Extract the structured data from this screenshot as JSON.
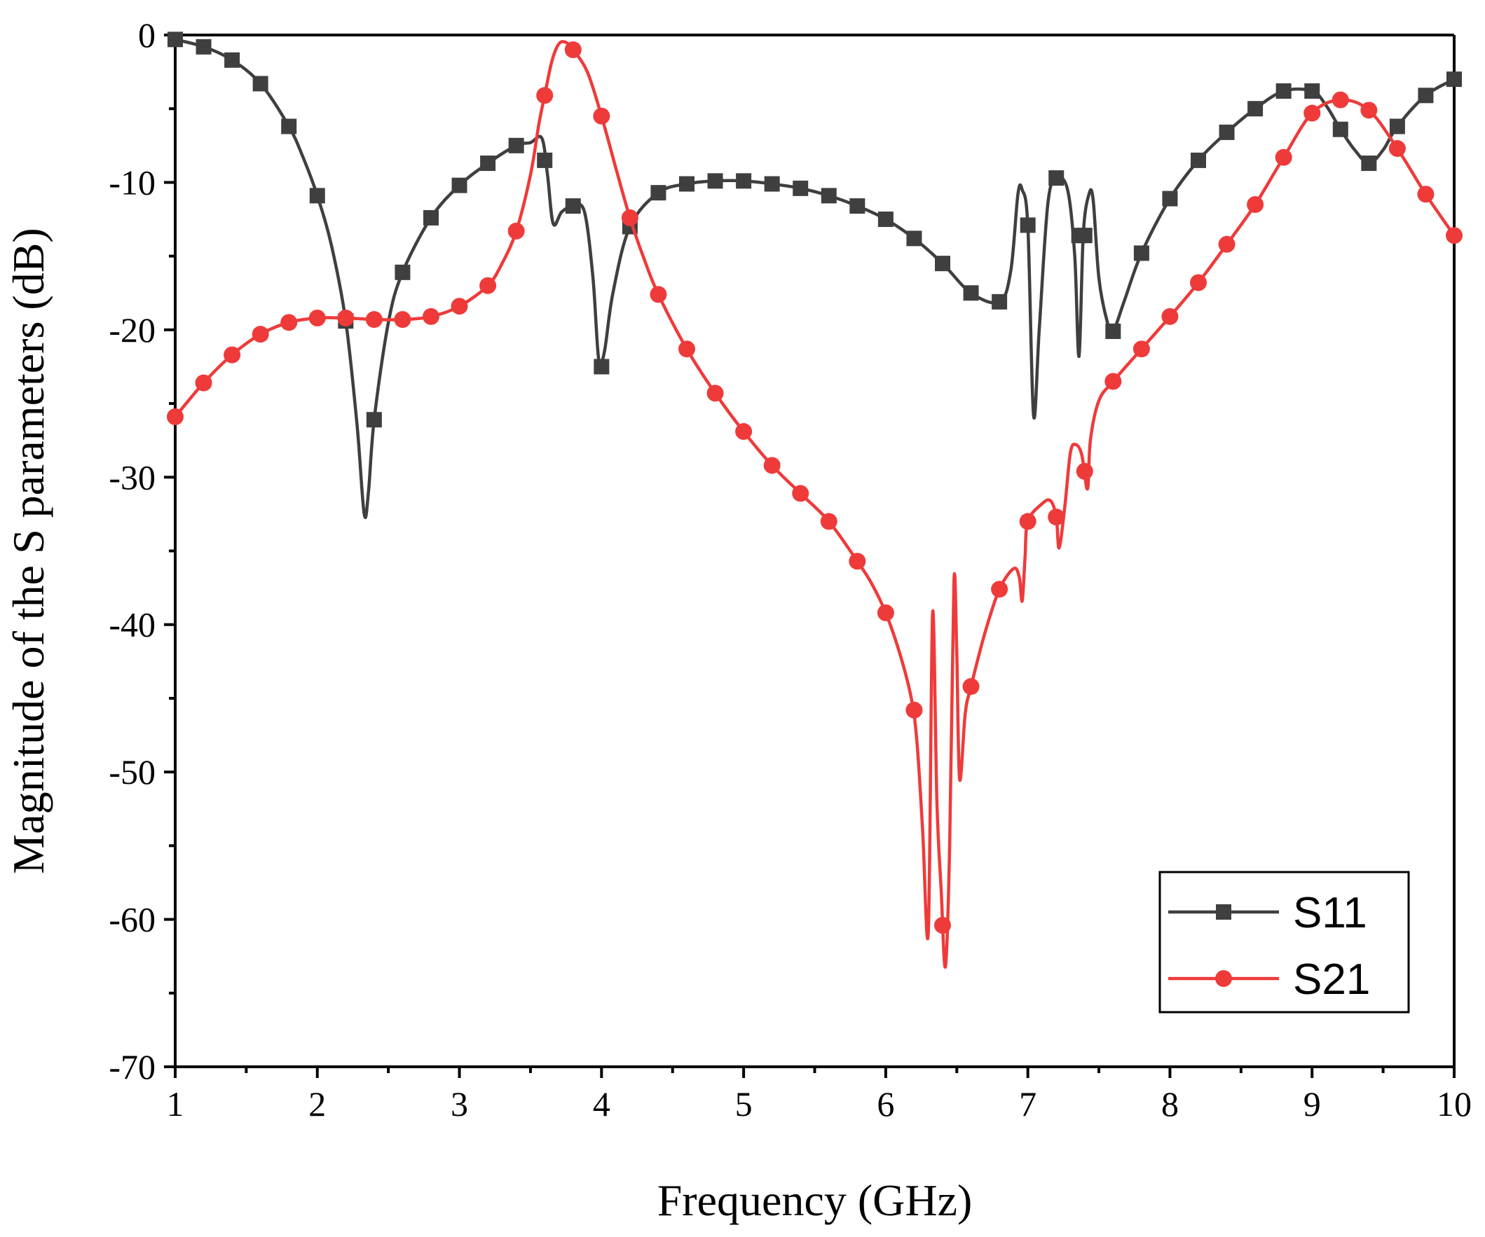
{
  "chart_data": {
    "type": "line",
    "title": "",
    "xlabel": "Frequency (GHz)",
    "ylabel": "Magnitude of the S parameters (dB)",
    "xlim": [
      1,
      10
    ],
    "ylim": [
      -70,
      0
    ],
    "xticks": [
      1,
      2,
      3,
      4,
      5,
      6,
      7,
      8,
      9,
      10
    ],
    "yticks": [
      0,
      -10,
      -20,
      -30,
      -40,
      -50,
      -60,
      -70
    ],
    "xtick_labels": [
      "1",
      "2",
      "3",
      "4",
      "5",
      "6",
      "7",
      "8",
      "9",
      "10"
    ],
    "ytick_labels": [
      "0",
      "-10",
      "-20",
      "-30",
      "-40",
      "-50",
      "-60",
      "-70"
    ],
    "grid": false,
    "legend_position": "bottom-right",
    "series": [
      {
        "name": "S11",
        "color": "#3f3f3f",
        "marker": "square",
        "line": [
          [
            1.0,
            -0.3
          ],
          [
            1.2,
            -0.8
          ],
          [
            1.4,
            -1.7
          ],
          [
            1.6,
            -3.3
          ],
          [
            1.8,
            -6.2
          ],
          [
            1.9,
            -8.3
          ],
          [
            2.0,
            -10.9
          ],
          [
            2.1,
            -14.3
          ],
          [
            2.2,
            -19.4
          ],
          [
            2.28,
            -26.5
          ],
          [
            2.33,
            -32.5
          ],
          [
            2.36,
            -31.0
          ],
          [
            2.4,
            -26.1
          ],
          [
            2.5,
            -19.5
          ],
          [
            2.6,
            -16.1
          ],
          [
            2.8,
            -12.4
          ],
          [
            3.0,
            -10.2
          ],
          [
            3.2,
            -8.7
          ],
          [
            3.4,
            -7.5
          ],
          [
            3.5,
            -7.3
          ],
          [
            3.58,
            -7.0
          ],
          [
            3.62,
            -9.5
          ],
          [
            3.66,
            -12.8
          ],
          [
            3.72,
            -12.0
          ],
          [
            3.8,
            -11.6
          ],
          [
            3.88,
            -12.0
          ],
          [
            3.94,
            -16.5
          ],
          [
            3.98,
            -22.0
          ],
          [
            4.02,
            -21.5
          ],
          [
            4.08,
            -17.5
          ],
          [
            4.2,
            -13.0
          ],
          [
            4.4,
            -10.7
          ],
          [
            4.6,
            -10.1
          ],
          [
            4.8,
            -9.9
          ],
          [
            5.0,
            -9.9
          ],
          [
            5.2,
            -10.1
          ],
          [
            5.4,
            -10.4
          ],
          [
            5.6,
            -10.9
          ],
          [
            5.8,
            -11.6
          ],
          [
            6.0,
            -12.5
          ],
          [
            6.2,
            -13.8
          ],
          [
            6.4,
            -15.5
          ],
          [
            6.6,
            -17.5
          ],
          [
            6.8,
            -18.1
          ],
          [
            6.88,
            -16.0
          ],
          [
            6.93,
            -10.8
          ],
          [
            6.96,
            -10.5
          ],
          [
            7.0,
            -13.0
          ],
          [
            7.04,
            -25.8
          ],
          [
            7.08,
            -20.0
          ],
          [
            7.14,
            -11.5
          ],
          [
            7.2,
            -9.7
          ],
          [
            7.28,
            -10.5
          ],
          [
            7.33,
            -15.0
          ],
          [
            7.36,
            -21.8
          ],
          [
            7.39,
            -13.5
          ],
          [
            7.43,
            -10.8
          ],
          [
            7.46,
            -11.2
          ],
          [
            7.5,
            -16.5
          ],
          [
            7.56,
            -19.5
          ],
          [
            7.6,
            -20.1
          ],
          [
            7.68,
            -18.0
          ],
          [
            7.8,
            -14.8
          ],
          [
            8.0,
            -11.1
          ],
          [
            8.2,
            -8.5
          ],
          [
            8.4,
            -6.6
          ],
          [
            8.6,
            -5.0
          ],
          [
            8.8,
            -3.8
          ],
          [
            9.0,
            -3.8
          ],
          [
            9.1,
            -4.8
          ],
          [
            9.2,
            -6.4
          ],
          [
            9.3,
            -7.8
          ],
          [
            9.4,
            -8.7
          ],
          [
            9.5,
            -7.8
          ],
          [
            9.6,
            -6.2
          ],
          [
            9.8,
            -4.1
          ],
          [
            10.0,
            -3.0
          ]
        ],
        "markers": [
          [
            1.0,
            -0.3
          ],
          [
            1.2,
            -0.8
          ],
          [
            1.4,
            -1.7
          ],
          [
            1.6,
            -3.3
          ],
          [
            1.8,
            -6.2
          ],
          [
            2.0,
            -10.9
          ],
          [
            2.2,
            -19.4
          ],
          [
            2.4,
            -26.1
          ],
          [
            2.6,
            -16.1
          ],
          [
            2.8,
            -12.4
          ],
          [
            3.0,
            -10.2
          ],
          [
            3.2,
            -8.7
          ],
          [
            3.4,
            -7.5
          ],
          [
            3.6,
            -8.5
          ],
          [
            3.8,
            -11.6
          ],
          [
            4.0,
            -22.5
          ],
          [
            4.2,
            -13.0
          ],
          [
            4.4,
            -10.7
          ],
          [
            4.6,
            -10.1
          ],
          [
            4.8,
            -9.9
          ],
          [
            5.0,
            -9.9
          ],
          [
            5.2,
            -10.1
          ],
          [
            5.4,
            -10.4
          ],
          [
            5.6,
            -10.9
          ],
          [
            5.8,
            -11.6
          ],
          [
            6.0,
            -12.5
          ],
          [
            6.2,
            -13.8
          ],
          [
            6.4,
            -15.5
          ],
          [
            6.6,
            -17.5
          ],
          [
            6.8,
            -18.1
          ],
          [
            7.0,
            -12.9
          ],
          [
            7.2,
            -9.7
          ],
          [
            7.36,
            -13.6
          ],
          [
            7.4,
            -13.6
          ],
          [
            7.6,
            -20.1
          ],
          [
            7.8,
            -14.8
          ],
          [
            8.0,
            -11.1
          ],
          [
            8.2,
            -8.5
          ],
          [
            8.4,
            -6.6
          ],
          [
            8.6,
            -5.0
          ],
          [
            8.8,
            -3.8
          ],
          [
            9.0,
            -3.8
          ],
          [
            9.2,
            -6.4
          ],
          [
            9.4,
            -8.7
          ],
          [
            9.6,
            -6.2
          ],
          [
            9.8,
            -4.1
          ],
          [
            10.0,
            -3.0
          ]
        ]
      },
      {
        "name": "S21",
        "color": "#ef3a3a",
        "marker": "circle",
        "line": [
          [
            1.0,
            -25.9
          ],
          [
            1.2,
            -23.6
          ],
          [
            1.4,
            -21.7
          ],
          [
            1.6,
            -20.3
          ],
          [
            1.8,
            -19.5
          ],
          [
            2.0,
            -19.2
          ],
          [
            2.2,
            -19.2
          ],
          [
            2.4,
            -19.3
          ],
          [
            2.6,
            -19.3
          ],
          [
            2.8,
            -19.1
          ],
          [
            3.0,
            -18.4
          ],
          [
            3.2,
            -17.0
          ],
          [
            3.3,
            -15.5
          ],
          [
            3.4,
            -13.3
          ],
          [
            3.5,
            -9.5
          ],
          [
            3.56,
            -6.0
          ],
          [
            3.6,
            -4.1
          ],
          [
            3.65,
            -1.8
          ],
          [
            3.7,
            -0.6
          ],
          [
            3.75,
            -0.5
          ],
          [
            3.8,
            -1.0
          ],
          [
            3.9,
            -2.5
          ],
          [
            4.0,
            -5.5
          ],
          [
            4.1,
            -9.0
          ],
          [
            4.2,
            -12.4
          ],
          [
            4.3,
            -15.2
          ],
          [
            4.4,
            -17.6
          ],
          [
            4.6,
            -21.3
          ],
          [
            4.8,
            -24.3
          ],
          [
            5.0,
            -26.9
          ],
          [
            5.2,
            -29.2
          ],
          [
            5.4,
            -31.1
          ],
          [
            5.6,
            -33.0
          ],
          [
            5.8,
            -35.7
          ],
          [
            5.9,
            -37.2
          ],
          [
            6.0,
            -39.2
          ],
          [
            6.1,
            -42.0
          ],
          [
            6.18,
            -45.0
          ],
          [
            6.22,
            -48.0
          ],
          [
            6.26,
            -54.0
          ],
          [
            6.3,
            -60.8
          ],
          [
            6.33,
            -39.2
          ],
          [
            6.36,
            -52.0
          ],
          [
            6.39,
            -58.0
          ],
          [
            6.42,
            -63.2
          ],
          [
            6.45,
            -55.0
          ],
          [
            6.48,
            -37.1
          ],
          [
            6.5,
            -42.0
          ],
          [
            6.52,
            -50.5
          ],
          [
            6.56,
            -46.0
          ],
          [
            6.6,
            -44.2
          ],
          [
            6.7,
            -40.5
          ],
          [
            6.8,
            -37.6
          ],
          [
            6.9,
            -36.2
          ],
          [
            6.94,
            -36.8
          ],
          [
            6.96,
            -38.4
          ],
          [
            6.98,
            -35.5
          ],
          [
            7.0,
            -33.0
          ],
          [
            7.1,
            -31.8
          ],
          [
            7.16,
            -31.6
          ],
          [
            7.2,
            -32.7
          ],
          [
            7.22,
            -34.8
          ],
          [
            7.26,
            -32.0
          ],
          [
            7.3,
            -28.3
          ],
          [
            7.34,
            -27.8
          ],
          [
            7.38,
            -28.5
          ],
          [
            7.42,
            -30.8
          ],
          [
            7.44,
            -27.5
          ],
          [
            7.5,
            -24.8
          ],
          [
            7.6,
            -23.5
          ],
          [
            7.8,
            -21.3
          ],
          [
            8.0,
            -19.1
          ],
          [
            8.2,
            -16.8
          ],
          [
            8.4,
            -14.2
          ],
          [
            8.6,
            -11.5
          ],
          [
            8.8,
            -8.3
          ],
          [
            9.0,
            -5.3
          ],
          [
            9.2,
            -4.4
          ],
          [
            9.4,
            -5.1
          ],
          [
            9.6,
            -7.7
          ],
          [
            9.8,
            -10.8
          ],
          [
            10.0,
            -13.6
          ]
        ],
        "markers": [
          [
            1.0,
            -25.9
          ],
          [
            1.2,
            -23.6
          ],
          [
            1.4,
            -21.7
          ],
          [
            1.6,
            -20.3
          ],
          [
            1.8,
            -19.5
          ],
          [
            2.0,
            -19.2
          ],
          [
            2.2,
            -19.2
          ],
          [
            2.4,
            -19.3
          ],
          [
            2.6,
            -19.3
          ],
          [
            2.8,
            -19.1
          ],
          [
            3.0,
            -18.4
          ],
          [
            3.2,
            -17.0
          ],
          [
            3.4,
            -13.3
          ],
          [
            3.6,
            -4.1
          ],
          [
            3.8,
            -1.0
          ],
          [
            4.0,
            -5.5
          ],
          [
            4.2,
            -12.4
          ],
          [
            4.4,
            -17.6
          ],
          [
            4.6,
            -21.3
          ],
          [
            4.8,
            -24.3
          ],
          [
            5.0,
            -26.9
          ],
          [
            5.2,
            -29.2
          ],
          [
            5.4,
            -31.1
          ],
          [
            5.6,
            -33.0
          ],
          [
            5.8,
            -35.7
          ],
          [
            6.0,
            -39.2
          ],
          [
            6.2,
            -45.8
          ],
          [
            6.4,
            -60.4
          ],
          [
            6.6,
            -44.2
          ],
          [
            6.8,
            -37.6
          ],
          [
            7.0,
            -33.0
          ],
          [
            7.2,
            -32.7
          ],
          [
            7.4,
            -29.6
          ],
          [
            7.6,
            -23.5
          ],
          [
            7.8,
            -21.3
          ],
          [
            8.0,
            -19.1
          ],
          [
            8.2,
            -16.8
          ],
          [
            8.4,
            -14.2
          ],
          [
            8.6,
            -11.5
          ],
          [
            8.8,
            -8.3
          ],
          [
            9.0,
            -5.3
          ],
          [
            9.2,
            -4.4
          ],
          [
            9.4,
            -5.1
          ],
          [
            9.6,
            -7.7
          ],
          [
            9.8,
            -10.8
          ],
          [
            10.0,
            -13.6
          ]
        ]
      }
    ]
  }
}
